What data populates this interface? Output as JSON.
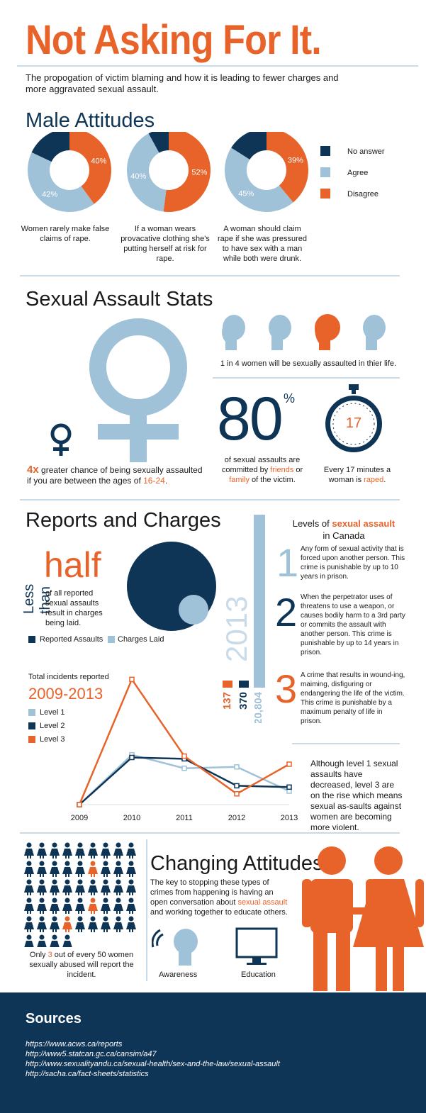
{
  "title": "Not Asking For It.",
  "intro": "The propogation of victim blaming and how it is leading to fewer charges and more aggravated sexual assault.",
  "colors": {
    "orange": "#e8632a",
    "navy": "#0e3456",
    "lightblue": "#a0c2d8"
  },
  "male_attitudes": {
    "heading": "Male Attitudes",
    "legend": [
      "No answer",
      "Agree",
      "Disagree"
    ],
    "charts": [
      {
        "caption": "Women rarely make false claims of rape.",
        "no_answer_pct": 18,
        "agree_label": "42%",
        "disagree_label": "40%",
        "agree_pct": 42,
        "disagree_pct": 40
      },
      {
        "caption": "If a woman wears provacative clothing she's putting herself at risk for rape.",
        "no_answer_pct": 8,
        "agree_label": "40%",
        "disagree_label": "52%",
        "agree_pct": 40,
        "disagree_pct": 52
      },
      {
        "caption": "A woman should claim rape if she was pressured to have sex with a man while both were drunk.",
        "no_answer_pct": 16,
        "agree_label": "45%",
        "disagree_label": "39%",
        "agree_pct": 45,
        "disagree_pct": 39
      }
    ]
  },
  "assault_stats": {
    "heading": "Sexual Assault Stats",
    "one_in_four": "1 in 4 women will be sexually assaulted in thier life.",
    "big_number": "80",
    "percent_sign": "%",
    "eighty_text_a": "of sexual assaults are committed by ",
    "friends": "friends",
    "or": " or ",
    "family": "family",
    "eighty_text_b": " of the victim.",
    "timer_number": "17",
    "timer_text_a": "Every 17 minutes a woman is ",
    "raped": "raped",
    "timer_text_b": ".",
    "fourx": "4x",
    "fourx_text": " greater chance of being sexually assaulted if you are between the ages of ",
    "ages": "16-24",
    "fourx_end": "."
  },
  "reports": {
    "heading": "Reports and Charges",
    "less_than": "Less than",
    "half": "half",
    "half_text": "of all reported sexual assaults result in charges being laid.",
    "legend_reported": "Reported Assaults",
    "legend_charges": "Charges Laid",
    "year": "2013",
    "bars": [
      {
        "label": "137",
        "value": 137,
        "color": "#e8632a"
      },
      {
        "label": "370",
        "value": 370,
        "color": "#0e3456"
      },
      {
        "label": "20,804",
        "value": 20804,
        "color": "#a0c2d8"
      }
    ]
  },
  "levels": {
    "heading_a": "Levels of ",
    "heading_b": "sexual assault",
    "heading_c": "in Canada",
    "items": [
      {
        "num": "1",
        "text": "Any form of sexual activity that is forced upon another person. This crime is punishable by up to 10 years in prison."
      },
      {
        "num": "2",
        "text": "When the perpetrator uses of threatens to use a weapon, or causes bodily harm to a 3rd party or commits the assault with another person. This crime is punishable by up to 14 years in prison."
      },
      {
        "num": "3",
        "text": "A crime that results in wound-ing, maiming, disfiguring or endangering the life of the victim. This crime is punishable by a maximum penalty of life in prison."
      }
    ],
    "note": "Although level 1 sexual assaults have decreased, level 3 are on the rise which means sexual as-saults against women are becoming more violent."
  },
  "chart_data": {
    "type": "line",
    "title": "Total incidents reported",
    "subtitle": "2009-2013",
    "x": [
      "2009",
      "2010",
      "2011",
      "2012",
      "2013"
    ],
    "series": [
      {
        "name": "Level 1",
        "color": "#a0c2d8",
        "values": [
          0,
          0.37,
          0.27,
          0.28,
          0.1
        ]
      },
      {
        "name": "Level 2",
        "color": "#0e3456",
        "values": [
          0,
          0.35,
          0.34,
          0.14,
          0.13
        ]
      },
      {
        "name": "Level 3",
        "color": "#e8632a",
        "values": [
          0,
          0.93,
          0.36,
          0.08,
          0.3
        ]
      }
    ]
  },
  "changing": {
    "heading": "Changing Attitudes",
    "text_a": "The key to stopping these types of crimes from happening is having an open conversation about ",
    "highlight": "sexual assault",
    "text_b": " and working together to educate others.",
    "awareness": "Awareness",
    "education": "Education",
    "only_a": "Only ",
    "three": "3",
    "only_b": " out of every 50 women sexually abused will report the incident."
  },
  "sources": {
    "heading": "Sources",
    "links": [
      "https://www.acws.ca/reports",
      "http://www5.statcan.gc.ca/cansim/a47",
      "http://www.sexualityandu.ca/sexual-health/sex-and-the-law/sexual-assault",
      "http://sacha.ca/fact-sheets/statistics"
    ]
  }
}
